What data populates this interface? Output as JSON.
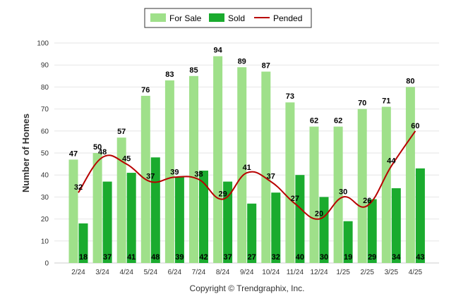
{
  "chart_data": {
    "type": "bar",
    "categories": [
      "2/24",
      "3/24",
      "4/24",
      "5/24",
      "6/24",
      "7/24",
      "8/24",
      "9/24",
      "10/24",
      "11/24",
      "12/24",
      "1/25",
      "2/25",
      "3/25",
      "4/25"
    ],
    "series": [
      {
        "name": "For Sale",
        "type": "bar",
        "color": "#9fe08a",
        "values": [
          47,
          50,
          57,
          76,
          83,
          85,
          94,
          89,
          87,
          73,
          62,
          62,
          70,
          71,
          80
        ]
      },
      {
        "name": "Sold",
        "type": "bar",
        "color": "#1aab2e",
        "values": [
          18,
          37,
          41,
          48,
          39,
          42,
          37,
          27,
          32,
          40,
          30,
          19,
          29,
          34,
          43
        ]
      },
      {
        "name": "Pended",
        "type": "line",
        "color": "#b80000",
        "values": [
          32,
          48,
          45,
          37,
          39,
          38,
          29,
          41,
          37,
          27,
          20,
          30,
          26,
          44,
          60
        ]
      }
    ],
    "ylabel": "Number of Homes",
    "ylim": [
      0,
      100
    ],
    "yticks": [
      0,
      10,
      20,
      30,
      40,
      50,
      60,
      70,
      80,
      90,
      100
    ],
    "grid": true,
    "legend_position": "top-center"
  },
  "footer": {
    "copyright": "Copyright © Trendgraphix, Inc."
  }
}
